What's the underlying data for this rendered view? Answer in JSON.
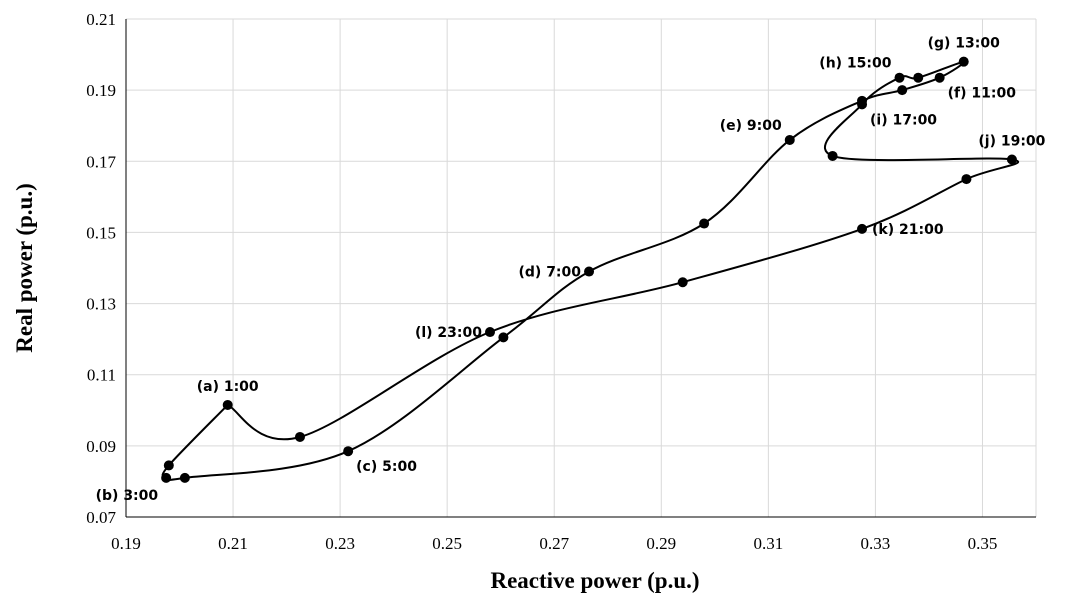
{
  "chart_data": {
    "type": "line",
    "subtype": "scatter-with-smooth-lines",
    "xlabel": "Reactive power (p.u.)",
    "ylabel": "Real power (p.u.)",
    "xlim": [
      0.19,
      0.36
    ],
    "ylim": [
      0.07,
      0.21
    ],
    "x_ticks": [
      "0.19",
      "0.21",
      "0.23",
      "0.25",
      "0.27",
      "0.29",
      "0.31",
      "0.33",
      "0.35"
    ],
    "y_ticks": [
      "0.07",
      "0.09",
      "0.11",
      "0.13",
      "0.15",
      "0.17",
      "0.19",
      "0.21"
    ],
    "grid": "vertical-and-horizontal",
    "legend": "none",
    "series": [
      {
        "points": [
          {
            "x": 0.209,
            "y": 0.1015
          },
          {
            "x": 0.198,
            "y": 0.0845
          },
          {
            "x": 0.1975,
            "y": 0.081
          },
          {
            "x": 0.201,
            "y": 0.081
          },
          {
            "x": 0.2315,
            "y": 0.0885
          },
          {
            "x": 0.2605,
            "y": 0.1205
          },
          {
            "x": 0.2765,
            "y": 0.139
          },
          {
            "x": 0.298,
            "y": 0.1525
          },
          {
            "x": 0.314,
            "y": 0.176
          },
          {
            "x": 0.3275,
            "y": 0.187
          },
          {
            "x": 0.335,
            "y": 0.19
          },
          {
            "x": 0.342,
            "y": 0.1935
          },
          {
            "x": 0.3465,
            "y": 0.198
          },
          {
            "x": 0.338,
            "y": 0.1935
          },
          {
            "x": 0.3345,
            "y": 0.1935
          },
          {
            "x": 0.3275,
            "y": 0.186
          },
          {
            "x": 0.322,
            "y": 0.1715
          },
          {
            "x": 0.3555,
            "y": 0.1705
          },
          {
            "x": 0.347,
            "y": 0.165
          },
          {
            "x": 0.3275,
            "y": 0.151
          },
          {
            "x": 0.294,
            "y": 0.136
          },
          {
            "x": 0.258,
            "y": 0.122
          },
          {
            "x": 0.2225,
            "y": 0.0925
          },
          {
            "x": 0.209,
            "y": 0.1015
          }
        ]
      }
    ],
    "annotations": [
      {
        "text": "(a) 1:00",
        "x": 0.209,
        "y": 0.1015,
        "pos": "above"
      },
      {
        "text": "(b) 3:00",
        "x": 0.1975,
        "y": 0.081,
        "pos": "below-left"
      },
      {
        "text": "(c) 5:00",
        "x": 0.2315,
        "y": 0.0885,
        "pos": "below-right"
      },
      {
        "text": "(d) 7:00",
        "x": 0.2765,
        "y": 0.139,
        "pos": "left"
      },
      {
        "text": "(e) 9:00",
        "x": 0.314,
        "y": 0.176,
        "pos": "above-left"
      },
      {
        "text": "(f) 11:00",
        "x": 0.342,
        "y": 0.1935,
        "pos": "below-right"
      },
      {
        "text": "(g) 13:00",
        "x": 0.3465,
        "y": 0.198,
        "pos": "above"
      },
      {
        "text": "(h) 15:00",
        "x": 0.3345,
        "y": 0.1935,
        "pos": "above-left"
      },
      {
        "text": "(i) 17:00",
        "x": 0.3275,
        "y": 0.186,
        "pos": "below-right"
      },
      {
        "text": "(j) 19:00",
        "x": 0.3555,
        "y": 0.1705,
        "pos": "above"
      },
      {
        "text": "(k) 21:00",
        "x": 0.3275,
        "y": 0.151,
        "pos": "right"
      },
      {
        "text": "(l) 23:00",
        "x": 0.258,
        "y": 0.122,
        "pos": "left"
      }
    ]
  }
}
